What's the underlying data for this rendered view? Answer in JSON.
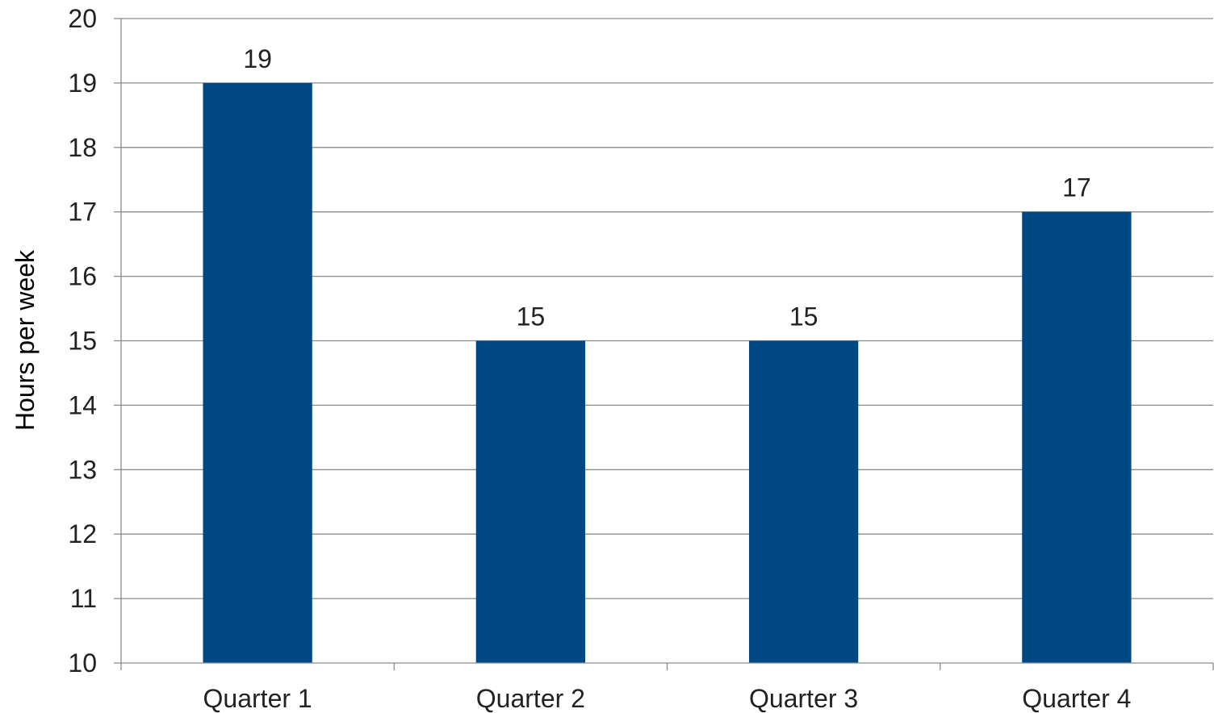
{
  "chart_data": {
    "type": "bar",
    "categories": [
      "Quarter 1",
      "Quarter 2",
      "Quarter 3",
      "Quarter 4"
    ],
    "values": [
      19,
      15,
      15,
      17
    ],
    "data_labels": [
      "19",
      "15",
      "15",
      "17"
    ],
    "ylabel": "Hours per week",
    "ylim": [
      10,
      20
    ],
    "yticks": [
      10,
      11,
      12,
      13,
      14,
      15,
      16,
      17,
      18,
      19,
      20
    ],
    "grid": true,
    "legend": "none",
    "colors": {
      "bar": "#004884",
      "grid": "#8c8c8c",
      "axis": "#8c8c8c"
    }
  }
}
